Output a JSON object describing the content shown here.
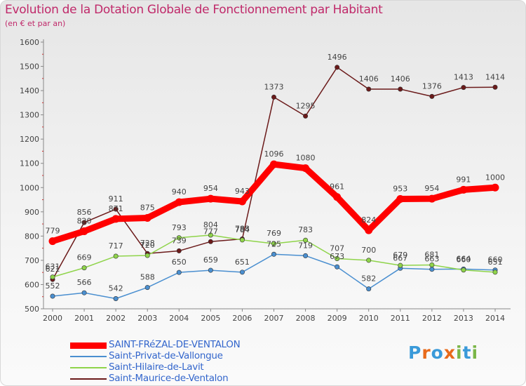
{
  "title": "Evolution de la Dotation Globale de Fonctionnement par Habitant",
  "subtitle": "(en € et par an)",
  "logo": {
    "text": "Proxiti",
    "letters": [
      "P",
      "r",
      "o",
      "x",
      "i",
      "t",
      "i"
    ],
    "colors": [
      "#3a9ad9",
      "#e86a1a",
      "#3a9ad9",
      "#e86a1a",
      "#7ab648",
      "#3a9ad9",
      "#7ab648"
    ]
  },
  "chart_data": {
    "type": "line",
    "title": "Evolution de la Dotation Globale de Fonctionnement par Habitant",
    "subtitle": "(en € et par an)",
    "xlabel": "",
    "ylabel": "",
    "ylim": [
      500,
      1600
    ],
    "yticks": [
      500,
      600,
      700,
      800,
      900,
      1000,
      1100,
      1200,
      1300,
      1400,
      1500,
      1600
    ],
    "x": [
      "2000",
      "2001",
      "2002",
      "2003",
      "2004",
      "2005",
      "2006",
      "2007",
      "2008",
      "2009",
      "2010",
      "2011",
      "2012",
      "2013",
      "2014"
    ],
    "grid": false,
    "legend_position": "bottom-left",
    "series": [
      {
        "name": "SAINT-FRéZAL-DE-VENTALON",
        "color": "#ff0000",
        "marker": "#ff0000",
        "width": 9,
        "values": [
          779,
          820,
          871,
          875,
          940,
          954,
          943,
          1096,
          1080,
          961,
          824,
          953,
          954,
          991,
          1000
        ],
        "labels": [
          "779",
          "820",
          "871",
          "875",
          "940",
          "954",
          "943",
          "1096",
          "1080",
          "961",
          "824",
          "953",
          "954",
          "991",
          "1000"
        ]
      },
      {
        "name": "Saint-Privat-de-Vallongue",
        "color": "#4a8fd0",
        "marker": "#4a8fd0",
        "width": 1.5,
        "values": [
          552,
          566,
          542,
          588,
          650,
          659,
          651,
          725,
          719,
          673,
          582,
          667,
          663,
          664,
          660
        ],
        "labels": [
          "552",
          "566",
          "542",
          "588",
          "650",
          "659",
          "651",
          "725",
          "719",
          "673",
          "582",
          "667",
          "663",
          "664",
          "660"
        ]
      },
      {
        "name": "Saint-Hilaire-de-Lavit",
        "color": "#8fd44a",
        "marker": "#8fd44a",
        "width": 1.5,
        "values": [
          631,
          669,
          717,
          720,
          793,
          804,
          784,
          769,
          783,
          707,
          700,
          679,
          681,
          660,
          651
        ],
        "labels": [
          "631",
          "669",
          "717",
          "720",
          "793",
          "804",
          "784",
          "769",
          "783",
          "707",
          "700",
          "679",
          "681",
          "660",
          "651"
        ]
      },
      {
        "name": "Saint-Maurice-de-Ventalon",
        "color": "#6b1a1a",
        "marker": "#6b1a1a",
        "width": 1.5,
        "values": [
          621,
          856,
          911,
          728,
          739,
          777,
          788,
          1373,
          1295,
          1496,
          1406,
          1406,
          1376,
          1413,
          1414
        ],
        "labels": [
          "621",
          "856",
          "911",
          "728",
          "739",
          "777",
          "788",
          "1373",
          "1295",
          "1496",
          "1406",
          "1406",
          "1376",
          "1413",
          "1414"
        ]
      }
    ]
  }
}
